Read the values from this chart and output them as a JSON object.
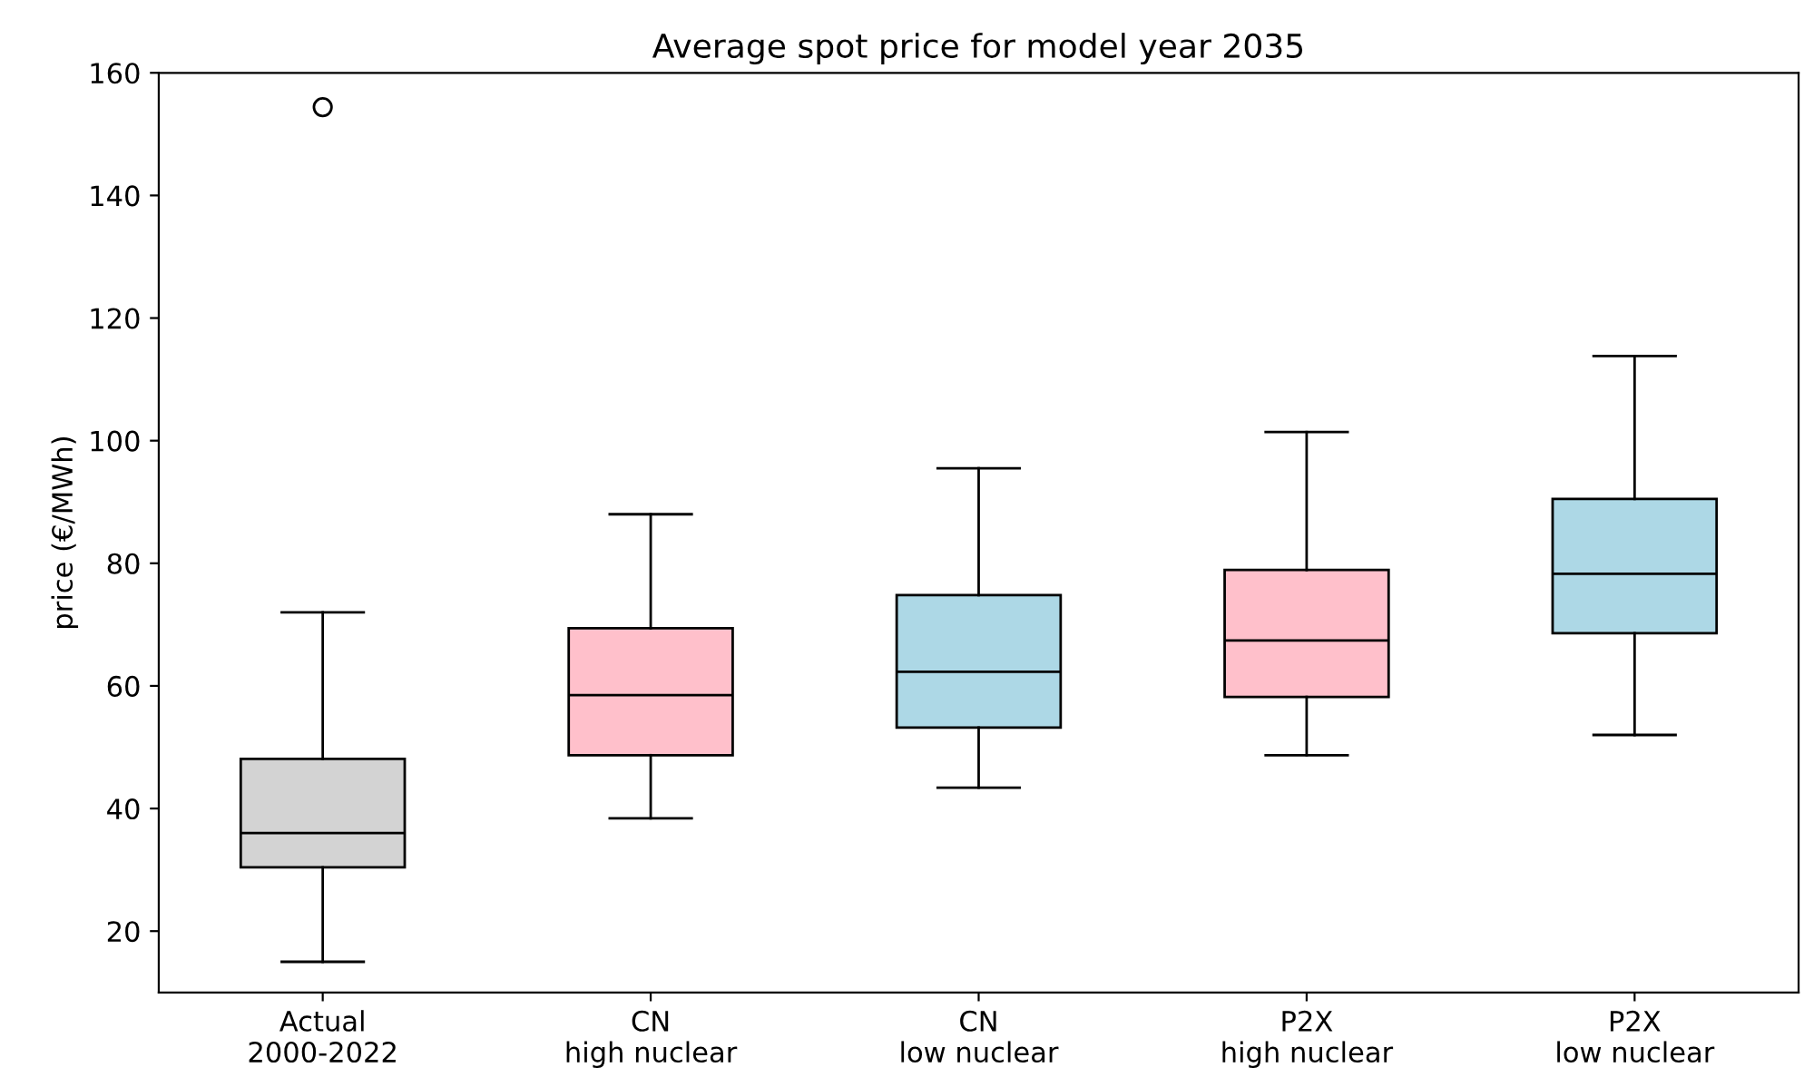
{
  "chart_data": {
    "type": "box",
    "title": "Average spot price for model year 2035",
    "ylabel": "price (€/MWh)",
    "categories": [
      "Actual\n2000-2022",
      "CN\nhigh nuclear",
      "CN\nlow nuclear",
      "P2X\nhigh nuclear",
      "P2X\nlow nuclear"
    ],
    "colors": [
      "#d3d3d3",
      "#ffc0cb",
      "#add8e6",
      "#ffc0cb",
      "#add8e6"
    ],
    "boxes": [
      {
        "low": 15,
        "q1": 30.4,
        "median": 36,
        "q3": 48.1,
        "high": 72,
        "outliers": [
          154.4
        ]
      },
      {
        "low": 38.4,
        "q1": 48.7,
        "median": 58.5,
        "q3": 69.4,
        "high": 88
      },
      {
        "low": 43.4,
        "q1": 53.2,
        "median": 62.3,
        "q3": 74.8,
        "high": 95.5
      },
      {
        "low": 48.7,
        "q1": 58.2,
        "median": 67.4,
        "q3": 78.9,
        "high": 101.4
      },
      {
        "low": 52,
        "q1": 68.6,
        "median": 78.3,
        "q3": 90.5,
        "high": 113.8
      }
    ],
    "ylim": [
      10,
      160
    ],
    "yticks": [
      20,
      40,
      60,
      80,
      100,
      120,
      140,
      160
    ],
    "grid": false
  }
}
